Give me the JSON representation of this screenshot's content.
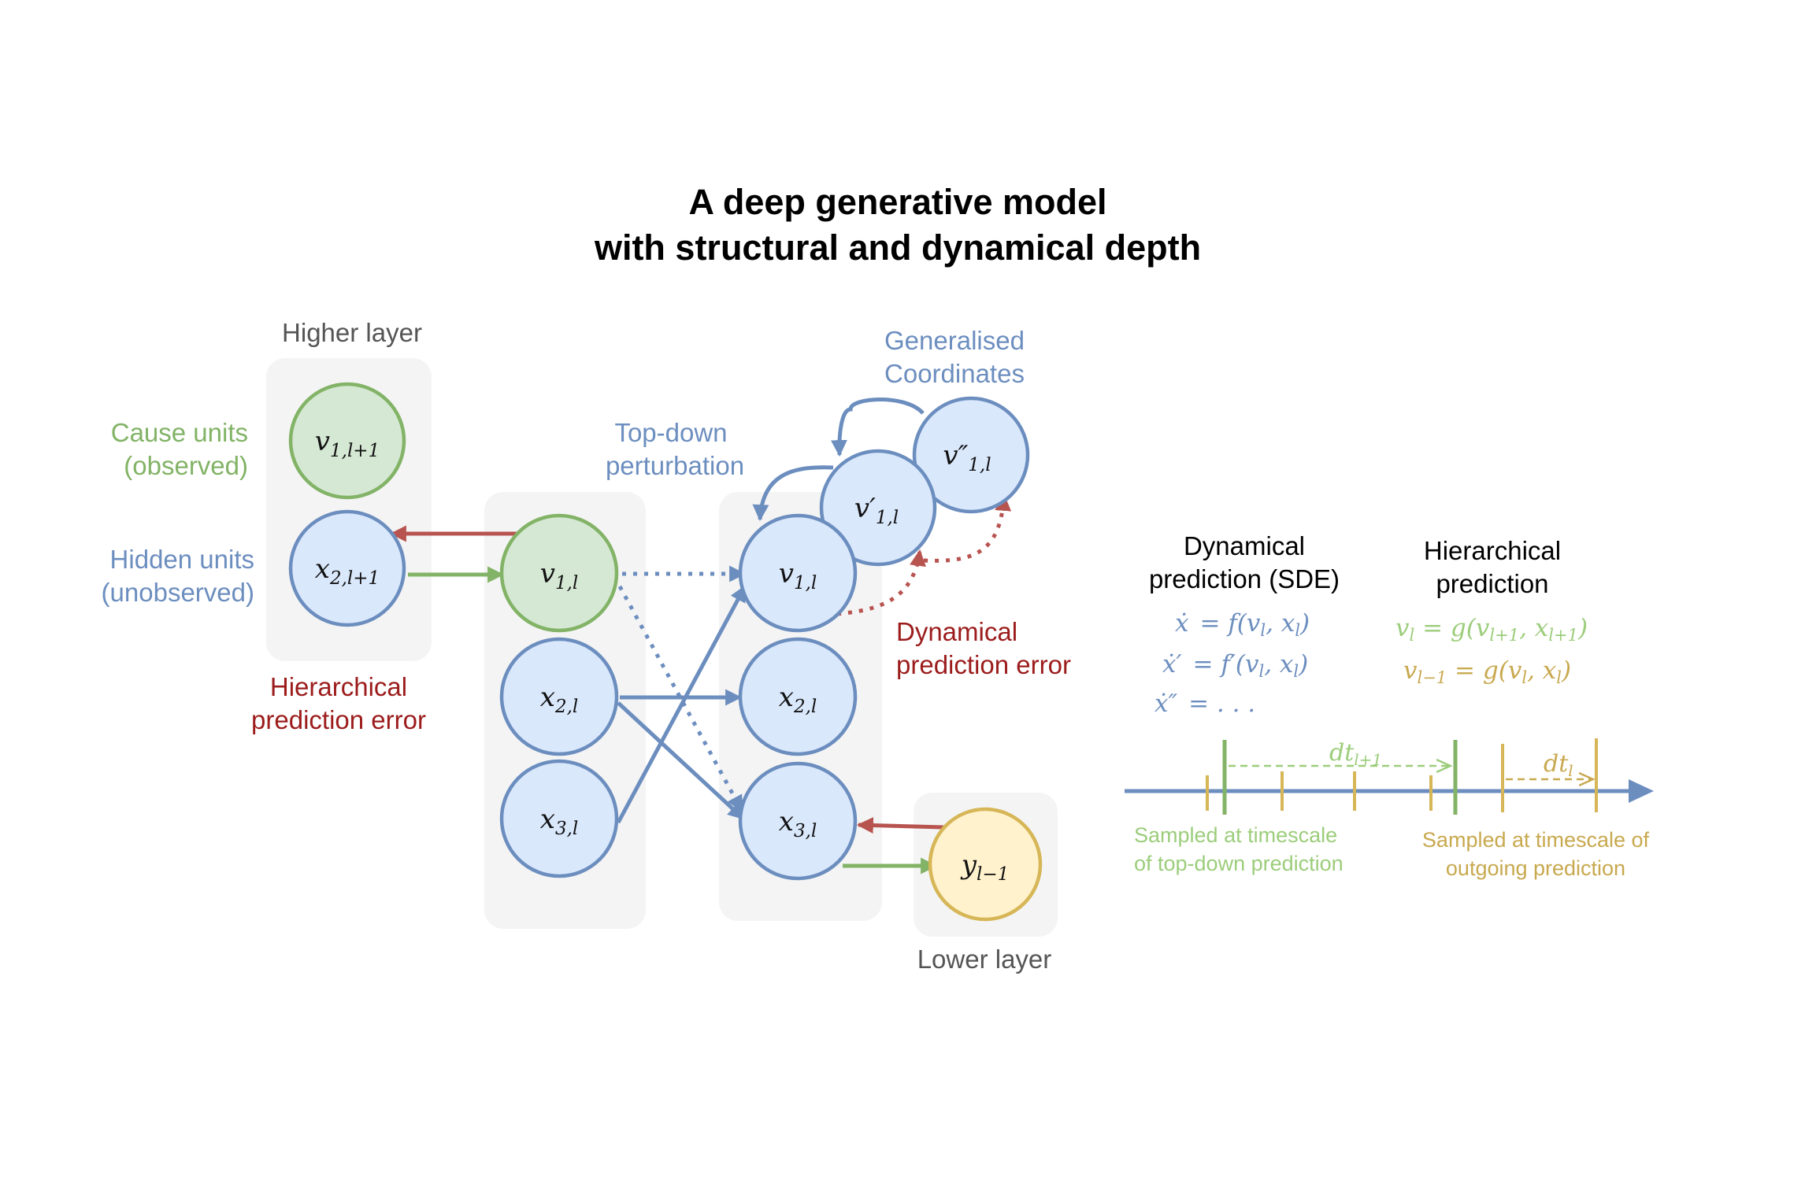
{
  "title": {
    "line1": "A deep generative model",
    "line2": "with structural and dynamical depth"
  },
  "colors": {
    "blue": "#6c8ebf",
    "blue_fill": "#dae8fc",
    "green": "#82b366",
    "green_fill": "#d5e8d4",
    "yellow": "#d6b656",
    "yellow_fill": "#fff2cc",
    "red": "#b85450",
    "dark_red": "#9c1c1c",
    "panel": "#f4f4f4",
    "label_gray": "#555555",
    "timeline_green": "#9ccd7b",
    "timeline_gold": "#c8a94f"
  },
  "labels": {
    "higher_layer": "Higher layer",
    "lower_layer": "Lower layer",
    "cause_units": [
      "Cause units",
      "(observed)"
    ],
    "hidden_units": [
      "Hidden units",
      "(unobserved)"
    ],
    "hierarchical_error": [
      "Hierarchical",
      "prediction error"
    ],
    "top_down": [
      "Top-down",
      "perturbation"
    ],
    "generalised": [
      "Generalised",
      "Coordinates"
    ],
    "dynamical_error": [
      "Dynamical",
      "prediction error"
    ]
  },
  "nodes": {
    "v1_l1": {
      "base": "v",
      "sub": "1,l+1"
    },
    "x2_l1": {
      "base": "x",
      "sub": "2,l+1"
    },
    "v1_l_a": {
      "base": "v",
      "sub": "1,l"
    },
    "x2_l_a": {
      "base": "x",
      "sub": "2,l"
    },
    "x3_l_a": {
      "base": "x",
      "sub": "3,l"
    },
    "v1_l_b": {
      "base": "v",
      "sub": "1,l"
    },
    "x2_l_b": {
      "base": "x",
      "sub": "2,l"
    },
    "x3_l_b": {
      "base": "x",
      "sub": "3,l"
    },
    "v1p_l": {
      "base": "v′",
      "sub": "1,l"
    },
    "v1pp_l": {
      "base": "v″",
      "sub": "1,l"
    },
    "y_lm1": {
      "base": "y",
      "sub": "l−1"
    }
  },
  "right_panel": {
    "dyn_title": [
      "Dynamical",
      "prediction (SDE)"
    ],
    "hier_title": [
      "Hierarchical",
      "prediction"
    ],
    "dyn_eq": [
      {
        "lhs": "ẋ",
        "rhs": "= f(v",
        "s1": "l",
        "mid": ", x",
        "s2": "l",
        "end": ")"
      },
      {
        "lhs": "ẋ′",
        "rhs": "= f′(v",
        "s1": "l",
        "mid": ", x",
        "s2": "l",
        "end": ")"
      },
      {
        "lhs": "ẋ″",
        "rhs": "= . . .",
        "s1": "",
        "mid": "",
        "s2": "",
        "end": ""
      }
    ],
    "hier_eq": [
      {
        "a": "v",
        "as": "l",
        "b": " = g(v",
        "bs": "l+1",
        "c": ", x",
        "cs": "l+1",
        "d": ")"
      },
      {
        "a": "v",
        "as": "l−1",
        "b": " = g(v",
        "bs": "l",
        "c": ", x",
        "cs": "l",
        "d": ")"
      }
    ],
    "dt_upper": {
      "base": "dt",
      "sub": "l+1"
    },
    "dt_lower": {
      "base": "dt",
      "sub": "l"
    },
    "sampled_topdown": [
      "Sampled at timescale",
      "of top-down prediction"
    ],
    "sampled_outgoing": [
      "Sampled at timescale of",
      "outgoing prediction"
    ]
  }
}
